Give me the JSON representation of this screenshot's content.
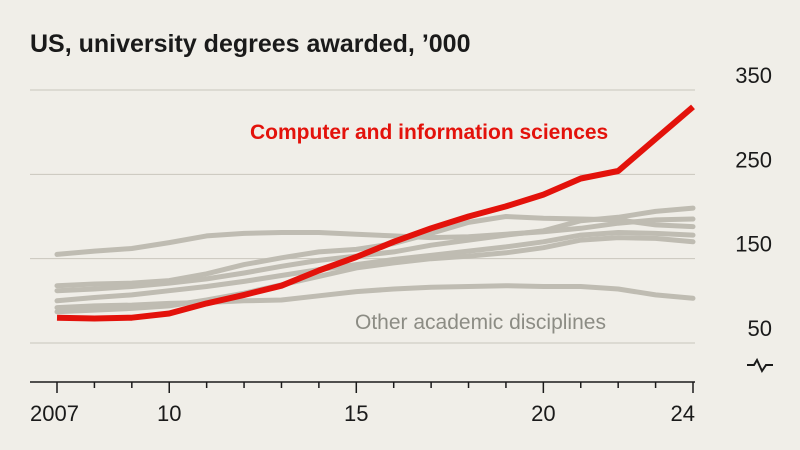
{
  "chart_data": {
    "type": "line",
    "title": "US, university degrees awarded, ’000",
    "x": [
      2007,
      2008,
      2009,
      2010,
      2011,
      2012,
      2013,
      2014,
      2015,
      2016,
      2017,
      2018,
      2019,
      2020,
      2021,
      2022,
      2023,
      2024
    ],
    "x_tick_values": [
      2007,
      2010,
      2015,
      2020,
      2024
    ],
    "x_tick_labels": [
      "2007",
      "10",
      "15",
      "20",
      "24"
    ],
    "y_ticks": [
      50,
      150,
      250,
      350
    ],
    "ylim": [
      50,
      350
    ],
    "axis_break": true,
    "highlight": {
      "name": "Computer and information sciences",
      "values": [
        80,
        79,
        80,
        85,
        97,
        107,
        118,
        136,
        152,
        170,
        186,
        200,
        212,
        226,
        245,
        254,
        292,
        330
      ],
      "color": "#e3120b"
    },
    "others_label": "Other academic disciplines",
    "other_color": "#bfbcb2",
    "others": [
      {
        "values": [
          155,
          159,
          162,
          169,
          177,
          180,
          181,
          181,
          179,
          177,
          175,
          176,
          179,
          182,
          186,
          192,
          196,
          197
        ]
      },
      {
        "values": [
          118,
          120,
          121,
          124,
          132,
          143,
          151,
          158,
          161,
          168,
          180,
          193,
          200,
          198,
          197,
          196,
          190,
          188
        ]
      },
      {
        "values": [
          112,
          114,
          117,
          121,
          126,
          133,
          141,
          148,
          153,
          158,
          166,
          172,
          178,
          183,
          195,
          199,
          206,
          210
        ]
      },
      {
        "values": [
          100,
          104,
          107,
          112,
          117,
          123,
          130,
          137,
          143,
          149,
          154,
          159,
          164,
          170,
          178,
          181,
          180,
          178
        ]
      },
      {
        "values": [
          87,
          89,
          91,
          94,
          101,
          109,
          119,
          129,
          139,
          145,
          150,
          153,
          157,
          163,
          172,
          175,
          174,
          170
        ]
      },
      {
        "values": [
          92,
          94,
          95,
          97,
          98,
          100,
          101,
          106,
          111,
          114,
          116,
          117,
          118,
          117,
          117,
          114,
          107,
          103
        ]
      }
    ]
  }
}
